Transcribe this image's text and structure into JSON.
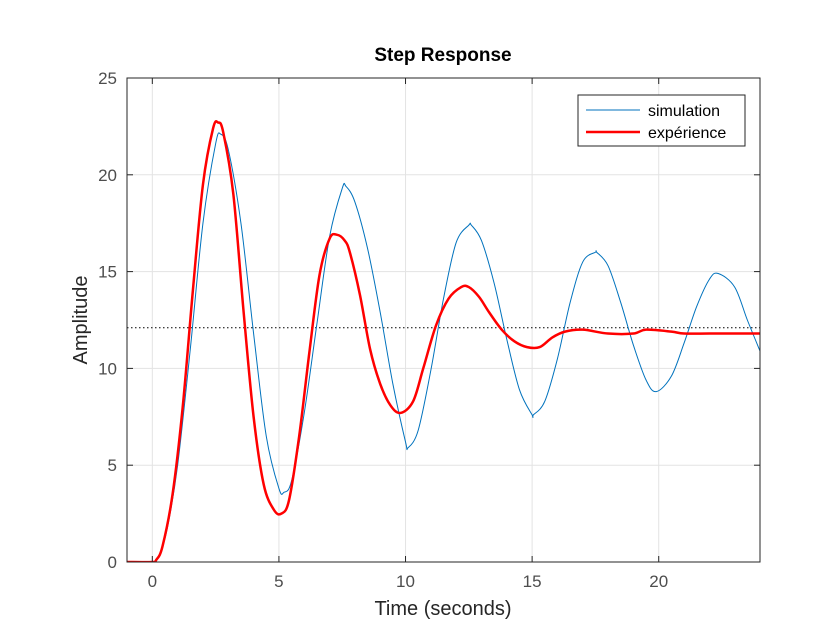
{
  "chart_data": {
    "type": "line",
    "title": "Step Response",
    "xlabel": "Time (seconds)",
    "ylabel": "Amplitude",
    "xlim": [
      -1,
      24
    ],
    "ylim": [
      0,
      25
    ],
    "xticks": [
      0,
      5,
      10,
      15,
      20
    ],
    "yticks": [
      0,
      5,
      10,
      15,
      20,
      25
    ],
    "grid": true,
    "legend_position": "top-right",
    "steady_state_value": 12.1,
    "series": [
      {
        "name": "simulation",
        "color": "#0072bd",
        "style": "thin",
        "x": [
          -1,
          0,
          0.1,
          0.3,
          0.6,
          1.0,
          1.5,
          2.0,
          2.5,
          2.7,
          3.0,
          3.5,
          4.0,
          4.5,
          5.0,
          5.2,
          5.5,
          6.0,
          6.5,
          7.0,
          7.5,
          7.65,
          8.0,
          8.5,
          9.0,
          9.5,
          10.0,
          10.1,
          10.5,
          11.0,
          11.5,
          12.0,
          12.5,
          12.6,
          13.0,
          13.5,
          14.0,
          14.5,
          15.0,
          15.05,
          15.5,
          16.0,
          16.5,
          17.0,
          17.5,
          17.55,
          18.0,
          18.5,
          19.0,
          19.5,
          19.9,
          20.5,
          21.0,
          21.5,
          22.0,
          22.35,
          23.0,
          23.5,
          24.0
        ],
        "y": [
          0,
          0,
          0.05,
          0.4,
          1.8,
          5.0,
          11.0,
          17.5,
          21.6,
          22.1,
          21.3,
          17.5,
          11.8,
          6.5,
          3.8,
          3.6,
          4.2,
          7.7,
          12.3,
          16.8,
          19.3,
          19.4,
          18.6,
          16.2,
          12.9,
          9.2,
          6.2,
          5.9,
          6.8,
          9.9,
          13.6,
          16.5,
          17.4,
          17.4,
          16.6,
          14.4,
          11.5,
          8.9,
          7.6,
          7.6,
          8.3,
          10.5,
          13.4,
          15.5,
          16.0,
          16.0,
          15.3,
          13.4,
          11.2,
          9.4,
          8.8,
          9.6,
          11.3,
          13.2,
          14.6,
          14.9,
          14.2,
          12.5,
          10.9
        ]
      },
      {
        "name": "expérience",
        "color": "#ff0000",
        "style": "thick",
        "x": [
          -1,
          0,
          0.15,
          0.4,
          0.8,
          1.2,
          1.6,
          2.0,
          2.4,
          2.6,
          2.8,
          3.2,
          3.6,
          4.0,
          4.4,
          4.8,
          5.1,
          5.4,
          5.8,
          6.2,
          6.6,
          7.0,
          7.3,
          7.6,
          7.8,
          8.2,
          8.6,
          9.0,
          9.4,
          9.8,
          10.3,
          10.7,
          11.2,
          11.7,
          12.2,
          12.5,
          12.9,
          13.3,
          13.8,
          14.3,
          14.8,
          15.3,
          15.8,
          16.3,
          17.0,
          18.0,
          19.0,
          19.5,
          20.5,
          21.0,
          22.0,
          23.0,
          24.0
        ],
        "y": [
          0,
          0,
          0.1,
          0.8,
          3.5,
          8.0,
          14.0,
          19.5,
          22.4,
          22.7,
          22.2,
          19.0,
          13.0,
          7.5,
          4.0,
          2.7,
          2.5,
          3.2,
          6.5,
          10.8,
          14.8,
          16.7,
          16.9,
          16.6,
          16.0,
          13.8,
          11.0,
          9.2,
          8.1,
          7.7,
          8.3,
          10.0,
          12.2,
          13.6,
          14.2,
          14.2,
          13.7,
          12.9,
          12.0,
          11.4,
          11.1,
          11.1,
          11.6,
          11.9,
          12.0,
          11.8,
          11.8,
          12.0,
          11.9,
          11.8,
          11.8,
          11.8,
          11.8
        ]
      }
    ]
  }
}
